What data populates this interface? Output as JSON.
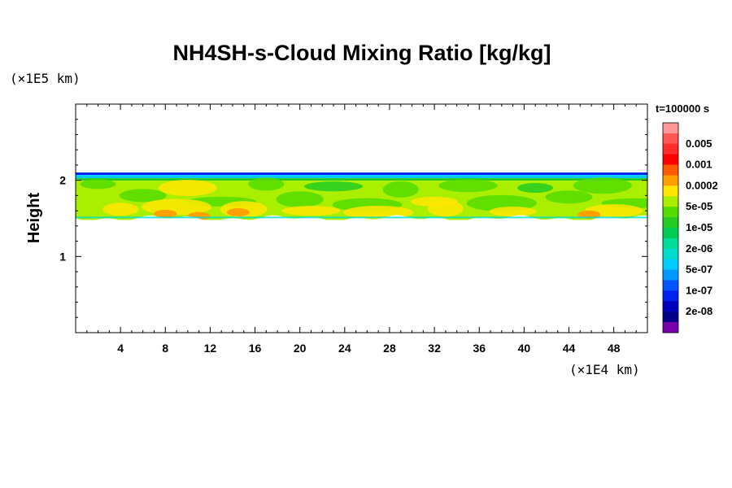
{
  "chart_data": {
    "type": "heatmap",
    "title": "NH4SH-s-Cloud Mixing Ratio [kg/kg]",
    "ylabel": "Height",
    "x_unit": "(×1E4 km)",
    "y_unit": "(×1E5 km)",
    "time_label": "t=100000 s",
    "xlim": [
      0,
      51
    ],
    "ylim": [
      0,
      3
    ],
    "x_ticks": [
      4,
      8,
      12,
      16,
      20,
      24,
      28,
      32,
      36,
      40,
      44,
      48
    ],
    "y_ticks": [
      1,
      2
    ],
    "grid": false,
    "colorbar": {
      "position": "right",
      "levels": [
        {
          "label": "",
          "color": "#ff9999"
        },
        {
          "label": "0.005",
          "color": "#ff5555"
        },
        {
          "label": "",
          "color": "#ff2a2a"
        },
        {
          "label": "0.001",
          "color": "#ff0000"
        },
        {
          "label": "",
          "color": "#ff5a00"
        },
        {
          "label": "0.0002",
          "color": "#ffa000"
        },
        {
          "label": "",
          "color": "#ffe600"
        },
        {
          "label": "5e-05",
          "color": "#aaee00"
        },
        {
          "label": "",
          "color": "#55dd00"
        },
        {
          "label": "1e-05",
          "color": "#22cc22"
        },
        {
          "label": "",
          "color": "#00cc55"
        },
        {
          "label": "2e-06",
          "color": "#00dd99"
        },
        {
          "label": "",
          "color": "#00ddcc"
        },
        {
          "label": "5e-07",
          "color": "#00ccff"
        },
        {
          "label": "",
          "color": "#0099ff"
        },
        {
          "label": "1e-07",
          "color": "#0055ff"
        },
        {
          "label": "",
          "color": "#0022ee"
        },
        {
          "label": "2e-08",
          "color": "#0000bb"
        },
        {
          "label": "",
          "color": "#000088"
        },
        {
          "label": "",
          "color": "#7700aa"
        }
      ]
    },
    "cloud_layer": {
      "top_height": 2.07,
      "bottom_height": 1.48,
      "dominant_color": "#aaee00",
      "hotspots": [
        {
          "x": 8,
          "y": 1.56,
          "color": "#ffa000"
        },
        {
          "x": 14.5,
          "y": 1.58,
          "color": "#ffa000"
        },
        {
          "x": 45.8,
          "y": 1.55,
          "color": "#ffa000"
        },
        {
          "x": 11,
          "y": 1.53,
          "color": "#ffa000"
        }
      ]
    }
  }
}
